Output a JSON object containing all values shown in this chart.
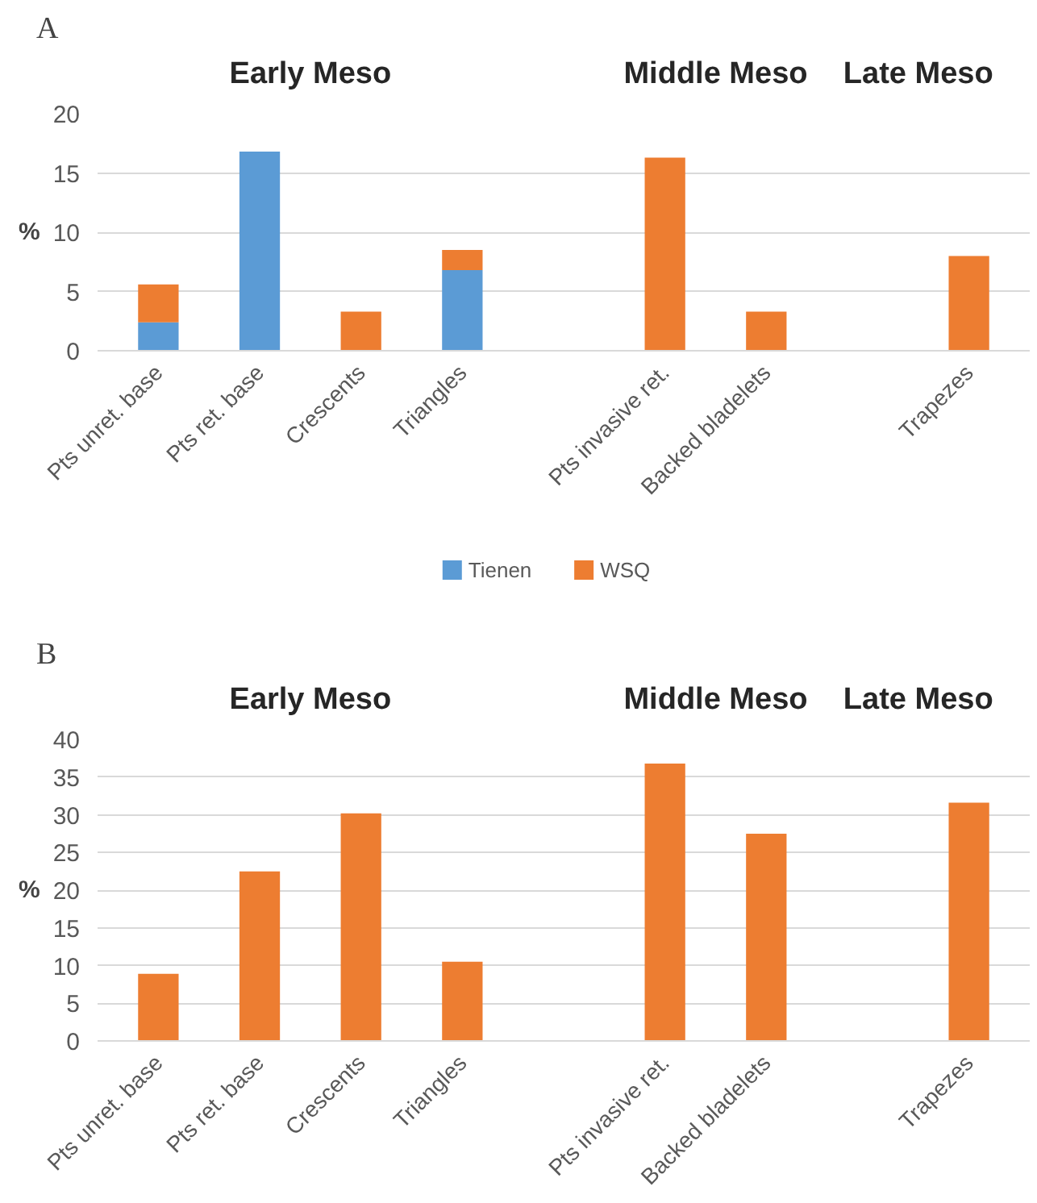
{
  "chart_data": [
    {
      "type": "bar",
      "title": "A",
      "annotations": [
        "Early Meso",
        "Middle Meso",
        "Late Meso"
      ],
      "ylabel": "%",
      "categories": [
        "Pts unret. base",
        "Pts ret. base",
        "Crescents",
        "Triangles",
        null,
        "Pts invasive ret.",
        "Backed bladelets",
        null,
        "Trapezes"
      ],
      "stacked": true,
      "series": [
        {
          "name": "Tienen",
          "color": "#5b9bd5",
          "values": [
            2.4,
            16.8,
            null,
            6.8,
            null,
            null,
            null,
            null,
            null
          ]
        },
        {
          "name": "WSQ",
          "color": "#ed7d31",
          "values": [
            3.2,
            null,
            3.3,
            1.7,
            null,
            16.3,
            3.3,
            null,
            8.0
          ]
        }
      ],
      "ylim": [
        0,
        20
      ],
      "yticks": [
        0,
        5,
        10,
        15,
        20
      ],
      "grid": "y",
      "legend": "bottom"
    },
    {
      "type": "bar",
      "title": "B",
      "annotations": [
        "Early Meso",
        "Middle Meso",
        "Late Meso"
      ],
      "ylabel": "%",
      "categories": [
        "Pts unret. base",
        "Pts ret. base",
        "Crescents",
        "Triangles",
        null,
        "Pts invasive ret.",
        "Backed bladelets",
        null,
        "Trapezes"
      ],
      "values": [
        8.9,
        22.5,
        30.2,
        10.5,
        null,
        36.8,
        27.5,
        null,
        31.6
      ],
      "color": "#ed7d31",
      "ylim": [
        0,
        40
      ],
      "yticks": [
        0,
        5,
        10,
        15,
        20,
        25,
        30,
        35,
        40
      ],
      "grid": "y"
    }
  ]
}
